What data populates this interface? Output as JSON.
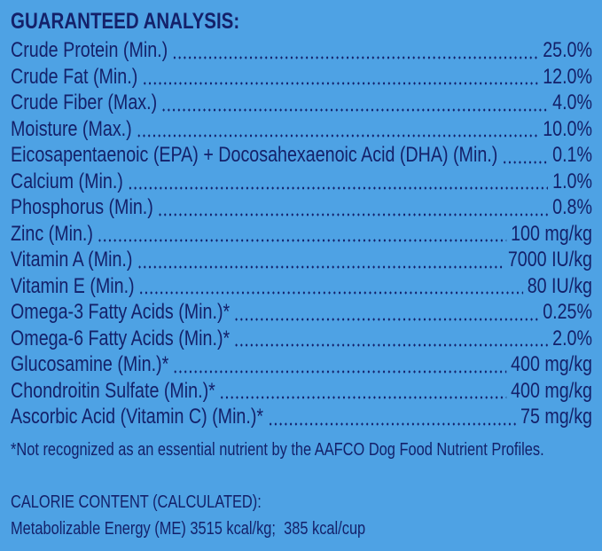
{
  "title": "GUARANTEED ANALYSIS:",
  "rows": [
    {
      "label": "Crude Protein (Min.)",
      "value": "25.0%"
    },
    {
      "label": "Crude Fat (Min.)",
      "value": "12.0%"
    },
    {
      "label": "Crude Fiber (Max.)",
      "value": "4.0%"
    },
    {
      "label": "Moisture (Max.)",
      "value": "10.0%"
    },
    {
      "label": "Eicosapentaenoic (EPA) + Docosahexaenoic Acid (DHA) (Min.)",
      "value": "0.1%"
    },
    {
      "label": "Calcium (Min.)",
      "value": "1.0%"
    },
    {
      "label": "Phosphorus (Min.)",
      "value": "0.8%"
    },
    {
      "label": "Zinc (Min.)",
      "value": "100 mg/kg"
    },
    {
      "label": "Vitamin A (Min.)",
      "value": "7000 IU/kg"
    },
    {
      "label": "Vitamin E (Min.)",
      "value": "80 IU/kg"
    },
    {
      "label": "Omega-3 Fatty Acids (Min.)*",
      "value": "0.25%"
    },
    {
      "label": "Omega-6 Fatty Acids (Min.)*",
      "value": "2.0%"
    },
    {
      "label": "Glucosamine (Min.)*",
      "value": "400 mg/kg"
    },
    {
      "label": "Chondroitin Sulfate (Min.)*",
      "value": "400 mg/kg"
    },
    {
      "label": "Ascorbic Acid (Vitamin C) (Min.)*",
      "value": "75 mg/kg"
    }
  ],
  "footnote": "*Not recognized as an essential nutrient by the AAFCO Dog Food Nutrient Profiles.",
  "calorie": {
    "heading": "CALORIE CONTENT (CALCULATED):",
    "text": "Metabolizable Energy (ME) 3515 kcal/kg;  385 kcal/cup"
  }
}
